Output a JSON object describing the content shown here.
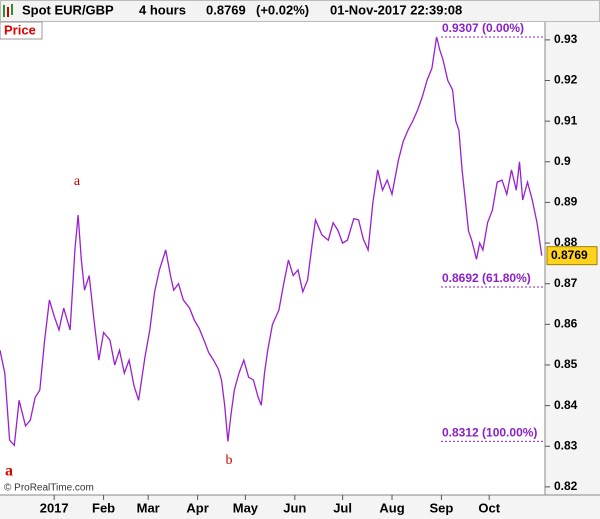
{
  "header": {
    "symbol": "Spot EUR/GBP",
    "timeframe": "4 hours",
    "price": "0.8769",
    "change": "(+0.02%)",
    "datetime": "01-Nov-2017 22:39:08"
  },
  "panel_label": "Price",
  "copyright": "© ProRealTime.com",
  "chart_data": {
    "type": "line",
    "color": "#9a1fd0",
    "xlim": [
      -34,
      308
    ],
    "ylim": [
      0.818,
      0.9344
    ],
    "xticks": [
      {
        "value": 0,
        "label": "2017"
      },
      {
        "value": 31,
        "label": "Feb"
      },
      {
        "value": 59,
        "label": "Mar"
      },
      {
        "value": 90,
        "label": "Apr"
      },
      {
        "value": 120,
        "label": "May"
      },
      {
        "value": 151,
        "label": "Jun"
      },
      {
        "value": 181,
        "label": "Jul"
      },
      {
        "value": 212,
        "label": "Aug"
      },
      {
        "value": 243,
        "label": "Sep"
      },
      {
        "value": 273,
        "label": "Oct"
      }
    ],
    "yticks": [
      0.82,
      0.83,
      0.84,
      0.85,
      0.86,
      0.87,
      0.88,
      0.89,
      0.9,
      0.91,
      0.92,
      0.93
    ],
    "last_value": {
      "value": 0.8769,
      "label": "0.8769"
    },
    "fib_levels": [
      {
        "value": 0.9307,
        "label": "0.9307 (0.00%)"
      },
      {
        "value": 0.8692,
        "label": "0.8692 (61.80%)"
      },
      {
        "value": 0.8312,
        "label": "0.8312 (100.00%)"
      }
    ],
    "wave_labels": [
      "a",
      "b",
      "a"
    ],
    "x": [
      -34,
      -31,
      -28,
      -25,
      -22,
      -18,
      -15,
      -12,
      -9,
      -6,
      -3,
      0,
      3,
      6,
      10,
      13,
      15,
      17,
      19,
      22,
      25,
      28,
      31,
      35,
      38,
      41,
      44,
      47,
      50,
      53,
      57,
      60,
      63,
      66,
      70,
      73,
      75,
      78,
      81,
      85,
      88,
      91,
      94,
      97,
      100,
      103,
      105,
      107,
      109,
      111,
      113,
      116,
      119,
      122,
      125,
      128,
      130,
      132,
      134,
      137,
      141,
      144,
      147,
      150,
      153,
      156,
      159,
      162,
      164,
      168,
      172,
      175,
      178,
      181,
      184,
      188,
      191,
      194,
      197,
      200,
      203,
      206,
      209,
      212,
      216,
      219,
      222,
      225,
      228,
      231,
      234,
      237,
      240,
      242,
      244,
      247,
      250,
      252,
      254,
      256,
      258,
      260,
      262,
      265,
      267,
      269,
      272,
      275,
      278,
      281,
      284,
      287,
      290,
      292,
      294,
      297,
      300,
      303,
      306
    ],
    "values": [
      0.8536,
      0.848,
      0.8315,
      0.8302,
      0.8413,
      0.835,
      0.8364,
      0.842,
      0.8438,
      0.856,
      0.866,
      0.862,
      0.8586,
      0.864,
      0.8586,
      0.8783,
      0.8869,
      0.876,
      0.8684,
      0.872,
      0.861,
      0.8512,
      0.858,
      0.8561,
      0.85,
      0.8536,
      0.848,
      0.8512,
      0.845,
      0.8413,
      0.852,
      0.8586,
      0.868,
      0.8734,
      0.8783,
      0.872,
      0.8684,
      0.87,
      0.866,
      0.864,
      0.861,
      0.859,
      0.8561,
      0.853,
      0.8512,
      0.849,
      0.8463,
      0.84,
      0.8312,
      0.838,
      0.8438,
      0.848,
      0.8512,
      0.847,
      0.8463,
      0.842,
      0.8401,
      0.848,
      0.8536,
      0.86,
      0.8635,
      0.87,
      0.8758,
      0.872,
      0.8734,
      0.868,
      0.8709,
      0.88,
      0.8857,
      0.882,
      0.8807,
      0.885,
      0.8832,
      0.88,
      0.8807,
      0.886,
      0.8857,
      0.881,
      0.8783,
      0.89,
      0.898,
      0.893,
      0.8955,
      0.892,
      0.9004,
      0.905,
      0.9078,
      0.91,
      0.9127,
      0.916,
      0.9201,
      0.923,
      0.9307,
      0.9275,
      0.9251,
      0.92,
      0.9177,
      0.91,
      0.9078,
      0.898,
      0.8906,
      0.883,
      0.8807,
      0.876,
      0.88,
      0.8783,
      0.885,
      0.8881,
      0.895,
      0.8955,
      0.892,
      0.898,
      0.893,
      0.9,
      0.8906,
      0.895,
      0.8906,
      0.885,
      0.8769
    ]
  }
}
